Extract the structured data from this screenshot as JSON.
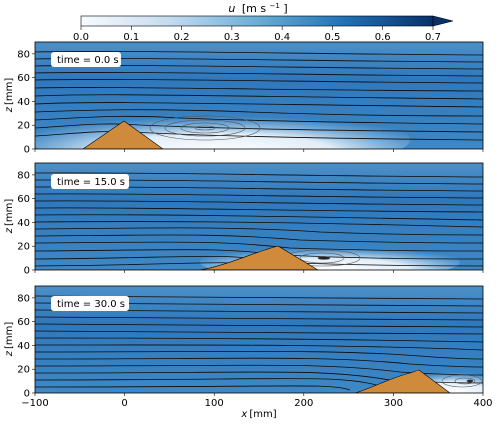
{
  "chart_data": {
    "type": "heatmap",
    "colorbar": {
      "label_main": "u",
      "label_unit": "[m s",
      "label_exp": "−1",
      "label_close": "]",
      "range": [
        0.0,
        0.7
      ],
      "ticks": [
        "0.0",
        "0.1",
        "0.2",
        "0.3",
        "0.4",
        "0.5",
        "0.6",
        "0.7"
      ],
      "extend": "max",
      "colors": [
        "#f7fbff",
        "#c6dbef",
        "#6baed6",
        "#2171b5",
        "#08306b"
      ]
    },
    "xlabel_main": "x",
    "xlabel_unit": "[mm]",
    "ylabel_main": "z",
    "ylabel_unit": "[mm]",
    "xlim": [
      -100,
      400
    ],
    "ylim": [
      0,
      90
    ],
    "xticks": [
      "−100",
      "0",
      "100",
      "200",
      "300",
      "400"
    ],
    "xtick_values": [
      -100,
      0,
      100,
      200,
      300,
      400
    ],
    "yticks": [
      "0",
      "20",
      "40",
      "60",
      "80"
    ],
    "ytick_values": [
      0,
      20,
      40,
      60,
      80
    ],
    "dune_color": "#d08a3c",
    "panels": [
      {
        "time_label": "time = 0.0 s",
        "dune_start": -45,
        "dune_crest": 0,
        "dune_end": 45,
        "dune_height": 23,
        "vortex_center": [
          85,
          16
        ]
      },
      {
        "time_label": "time = 15.0 s",
        "dune_start": 85,
        "dune_crest": 170,
        "dune_end": 215,
        "dune_height": 22,
        "vortex_center": [
          225,
          9
        ]
      },
      {
        "time_label": "time = 30.0 s",
        "dune_start": 245,
        "dune_crest": 325,
        "dune_end": 365,
        "dune_height": 20,
        "vortex_center": [
          375,
          9
        ]
      }
    ]
  }
}
